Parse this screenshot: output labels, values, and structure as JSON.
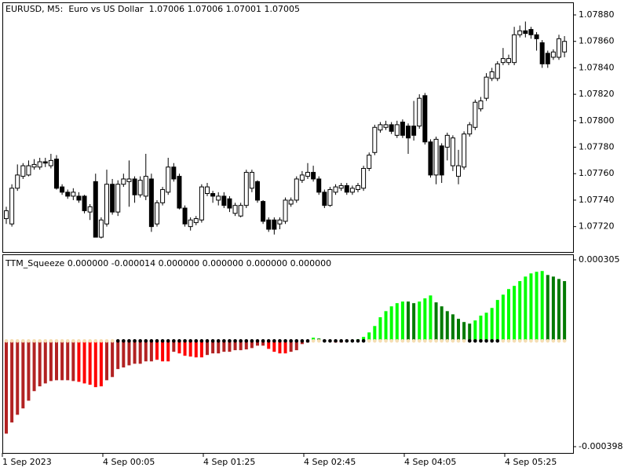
{
  "chart_data": [
    {
      "type": "candlestick",
      "title": "EURUSD, M5:  Euro vs US Dollar  1.07006 1.07006 1.07001 1.07005",
      "up_color": "#ffffff",
      "down_color": "#000000",
      "open": [
        1.07726,
        1.07722,
        1.07749,
        1.07758,
        1.07759,
        1.07765,
        1.07765,
        1.07769,
        1.07766,
        1.07771,
        1.0775,
        1.07746,
        1.07743,
        1.07743,
        1.07743,
        1.07731,
        1.07754,
        1.07712,
        1.07722,
        1.07752,
        1.07731,
        1.07752,
        1.07754,
        1.07756,
        1.07744,
        1.07743,
        1.07756,
        1.07722,
        1.07738,
        1.07746,
        1.07765,
        1.07758,
        1.07734,
        1.0772,
        1.07723,
        1.07725,
        1.07745,
        1.07745,
        1.0774,
        1.07743,
        1.07741,
        1.0773,
        1.07728,
        1.07736,
        1.07749,
        1.07754,
        1.07739,
        1.07725,
        1.07725,
        1.07722,
        1.07724,
        1.07737,
        1.0774,
        1.07755,
        1.07758,
        1.07761,
        1.07756,
        1.07746,
        1.07736,
        1.07746,
        1.07749,
        1.07751,
        1.07746,
        1.07748,
        1.07749,
        1.07764,
        1.07776,
        1.07793,
        1.07795,
        1.07797,
        1.07789,
        1.07799,
        1.07796,
        1.07796,
        1.07796,
        1.07819,
        1.07784,
        1.07759,
        1.07781,
        1.0778,
        1.07766,
        1.07758,
        1.07765,
        1.0779,
        1.07795,
        1.07809,
        1.07817,
        1.07832,
        1.07832,
        1.07844,
        1.07844,
        1.07844,
        1.07865,
        1.07868,
        1.07869,
        1.07865,
        1.07859,
        1.07851,
        1.07848,
        1.07848,
        1.07852
      ],
      "high": [
        1.07735,
        1.07752,
        1.07767,
        1.07768,
        1.0777,
        1.07771,
        1.07772,
        1.07772,
        1.07775,
        1.07774,
        1.07752,
        1.07748,
        1.07749,
        1.07746,
        1.07744,
        1.07737,
        1.0776,
        1.07727,
        1.07763,
        1.07756,
        1.07755,
        1.0776,
        1.0777,
        1.07758,
        1.07758,
        1.07775,
        1.0776,
        1.0774,
        1.0775,
        1.07772,
        1.07768,
        1.0776,
        1.07736,
        1.07727,
        1.07728,
        1.07752,
        1.07753,
        1.07747,
        1.07746,
        1.07746,
        1.07743,
        1.07738,
        1.07738,
        1.07763,
        1.07763,
        1.07755,
        1.0774,
        1.07727,
        1.07727,
        1.07727,
        1.07742,
        1.07742,
        1.07758,
        1.07762,
        1.07768,
        1.07766,
        1.07758,
        1.07748,
        1.0775,
        1.07752,
        1.07753,
        1.07753,
        1.07751,
        1.07753,
        1.07766,
        1.07776,
        1.07797,
        1.07799,
        1.078,
        1.07799,
        1.078,
        1.07801,
        1.07798,
        1.07815,
        1.0782,
        1.07821,
        1.07786,
        1.07788,
        1.07783,
        1.07791,
        1.07789,
        1.07778,
        1.07792,
        1.07799,
        1.07816,
        1.07818,
        1.07836,
        1.0784,
        1.07845,
        1.07855,
        1.0785,
        1.07871,
        1.07872,
        1.07875,
        1.07871,
        1.07867,
        1.07861,
        1.07853,
        1.07854,
        1.07865,
        1.07864
      ],
      "low": [
        1.07722,
        1.0772,
        1.07747,
        1.07756,
        1.07758,
        1.07763,
        1.07763,
        1.07765,
        1.07764,
        1.07748,
        1.07744,
        1.07741,
        1.0774,
        1.07738,
        1.0773,
        1.07725,
        1.07712,
        1.07711,
        1.0772,
        1.07729,
        1.07728,
        1.0775,
        1.07735,
        1.07738,
        1.07742,
        1.0774,
        1.07716,
        1.0772,
        1.07736,
        1.07744,
        1.07754,
        1.07733,
        1.0772,
        1.07717,
        1.07721,
        1.07723,
        1.07743,
        1.07738,
        1.07736,
        1.07734,
        1.07731,
        1.07728,
        1.07727,
        1.07734,
        1.07746,
        1.07738,
        1.07722,
        1.07716,
        1.07714,
        1.07718,
        1.07722,
        1.07735,
        1.07738,
        1.07753,
        1.07756,
        1.07754,
        1.07744,
        1.07734,
        1.07735,
        1.07744,
        1.07747,
        1.07744,
        1.07744,
        1.07746,
        1.07747,
        1.07762,
        1.07774,
        1.07791,
        1.07793,
        1.0779,
        1.07787,
        1.07787,
        1.07775,
        1.07785,
        1.07794,
        1.07782,
        1.07757,
        1.07752,
        1.07753,
        1.0777,
        1.07762,
        1.07752,
        1.07763,
        1.07788,
        1.07793,
        1.07807,
        1.07815,
        1.0783,
        1.0783,
        1.07842,
        1.07842,
        1.07842,
        1.07863,
        1.07863,
        1.07862,
        1.07853,
        1.0784,
        1.0784,
        1.07846,
        1.07846,
        1.07848
      ],
      "close": [
        1.07732,
        1.07749,
        1.07759,
        1.07766,
        1.07766,
        1.07767,
        1.07769,
        1.07768,
        1.0777,
        1.07749,
        1.07746,
        1.07743,
        1.07746,
        1.0774,
        1.07732,
        1.07735,
        1.07712,
        1.07725,
        1.07752,
        1.07731,
        1.07752,
        1.07756,
        1.07756,
        1.07744,
        1.07755,
        1.07758,
        1.0772,
        1.07738,
        1.07748,
        1.07765,
        1.07756,
        1.07734,
        1.07722,
        1.07725,
        1.07726,
        1.0775,
        1.0775,
        1.07743,
        1.07743,
        1.07736,
        1.07734,
        1.07736,
        1.07736,
        1.07761,
        1.07761,
        1.0774,
        1.07724,
        1.07718,
        1.07718,
        1.07725,
        1.0774,
        1.0774,
        1.07756,
        1.07759,
        1.07761,
        1.07756,
        1.07746,
        1.07736,
        1.07748,
        1.0775,
        1.07751,
        1.07746,
        1.07749,
        1.07751,
        1.07764,
        1.07774,
        1.07795,
        1.07797,
        1.07797,
        1.07792,
        1.07797,
        1.07789,
        1.07787,
        1.07789,
        1.07817,
        1.07784,
        1.07759,
        1.07786,
        1.07759,
        1.07789,
        1.07787,
        1.07766,
        1.0779,
        1.07797,
        1.07814,
        1.07815,
        1.07833,
        1.07837,
        1.07843,
        1.07847,
        1.07847,
        1.07865,
        1.07868,
        1.07866,
        1.07865,
        1.07862,
        1.07843,
        1.07843,
        1.07852,
        1.07862,
        1.0786
      ],
      "ylim": [
        1.077008,
        1.078895
      ],
      "yticks": [
        {
          "value": 1.0788,
          "label": "1.07880"
        },
        {
          "value": 1.0786,
          "label": "1.07860"
        },
        {
          "value": 1.0784,
          "label": "1.07840"
        },
        {
          "value": 1.0782,
          "label": "1.07820"
        },
        {
          "value": 1.078,
          "label": "1.07800"
        },
        {
          "value": 1.0778,
          "label": "1.07780"
        },
        {
          "value": 1.0776,
          "label": "1.07760"
        },
        {
          "value": 1.0774,
          "label": "1.07740"
        },
        {
          "value": 1.0772,
          "label": "1.07720"
        }
      ]
    },
    {
      "type": "bar",
      "title": "TTM_Squeeze 0.000000 -0.000014 0.000000 0.000000 0.000000 0.000000",
      "categories": [
        "1 Sep 2023",
        null,
        null,
        null,
        null,
        null,
        null,
        null,
        null,
        null,
        null,
        null,
        null,
        null,
        null,
        null,
        null,
        null,
        "4 Sep 00:05",
        null,
        null,
        null,
        null,
        null,
        null,
        null,
        null,
        null,
        null,
        null,
        null,
        null,
        null,
        null,
        null,
        null,
        "4 Sep 01:25",
        null,
        null,
        null,
        null,
        null,
        null,
        null,
        null,
        null,
        null,
        null,
        null,
        null,
        null,
        null,
        null,
        null,
        "4 Sep 02:45",
        null,
        null,
        null,
        null,
        null,
        null,
        null,
        null,
        null,
        null,
        null,
        null,
        null,
        null,
        null,
        null,
        null,
        "4 Sep 04:05",
        null,
        null,
        null,
        null,
        null,
        null,
        null,
        null,
        null,
        null,
        null,
        null,
        null,
        null,
        null,
        null,
        null,
        "4 Sep 05:25",
        null,
        null,
        null,
        null,
        null,
        null,
        null,
        null,
        null,
        null
      ],
      "values": [
        -0.000349,
        -0.000307,
        -0.000278,
        -0.000254,
        -0.000225,
        -0.000189,
        -0.000171,
        -0.00016,
        -0.000151,
        -0.000148,
        -0.000148,
        -0.000148,
        -0.000151,
        -0.000154,
        -0.00016,
        -0.000165,
        -0.000174,
        -0.000171,
        -0.000148,
        -0.000136,
        -0.000106,
        -0.0001,
        -9.2e-05,
        -8.6e-05,
        -8.6e-05,
        -7.7e-05,
        -7.7e-05,
        -7.1e-05,
        -7.7e-05,
        -7.7e-05,
        -4.1e-05,
        -4.7e-05,
        -5.6e-05,
        -5.9e-05,
        -6.2e-05,
        -6.2e-05,
        -5.3e-05,
        -4.7e-05,
        -4.7e-05,
        -4.1e-05,
        -4.1e-05,
        -3.5e-05,
        -3.5e-05,
        -3.2e-05,
        -2.7e-05,
        -1.8e-05,
        -1.8e-05,
        -3e-05,
        -4.1e-05,
        -4.7e-05,
        -4.7e-05,
        -4.1e-05,
        -3.5e-05,
        -1.2e-05,
        -6e-06,
        1.2e-05,
        9e-06,
        3e-06,
        -3e-06,
        -6e-06,
        -6e-06,
        -3e-06,
        3e-06,
        6e-06,
        1.5e-05,
        3.2e-05,
        5.6e-05,
        8.9e-05,
        0.000112,
        0.00013,
        0.000142,
        0.000148,
        0.000148,
        0.000142,
        0.000148,
        0.00016,
        0.000171,
        0.000145,
        0.00013,
        0.000112,
        0.0001,
        8.3e-05,
        7.1e-05,
        6.5e-05,
        7.7e-05,
        9.5e-05,
        0.000106,
        0.000124,
        0.000154,
        0.000174,
        0.000195,
        0.000207,
        0.000225,
        0.000242,
        0.000254,
        0.00026,
        0.000263,
        0.000248,
        0.000242,
        0.000233,
        0.000225
      ],
      "colors": [
        "#b22222",
        "#b22222",
        "#b22222",
        "#b22222",
        "#b22222",
        "#b22222",
        "#b22222",
        "#b22222",
        "#b22222",
        "#b22222",
        "#b22222",
        "#b22222",
        "#b22222",
        "#ff0000",
        "#ff0000",
        "#ff0000",
        "#ff0000",
        "#ff0000",
        "#b22222",
        "#b22222",
        "#b22222",
        "#b22222",
        "#b22222",
        "#b22222",
        "#b22222",
        "#b22222",
        "#b22222",
        "#ff0000",
        "#ff0000",
        "#ff0000",
        "#b22222",
        "#ff0000",
        "#ff0000",
        "#ff0000",
        "#ff0000",
        "#ff0000",
        "#b22222",
        "#b22222",
        "#b22222",
        "#b22222",
        "#b22222",
        "#b22222",
        "#b22222",
        "#b22222",
        "#b22222",
        "#b22222",
        "#b22222",
        "#ff0000",
        "#ff0000",
        "#ff0000",
        "#ff0000",
        "#b22222",
        "#b22222",
        "#b22222",
        "#b22222",
        "#00ff00",
        "#007a00",
        "#007a00",
        "#b22222",
        "#ff0000",
        "#b22222",
        "#b22222",
        "#00ff00",
        "#00ff00",
        "#00ff00",
        "#00ff00",
        "#00ff00",
        "#00ff00",
        "#00ff00",
        "#00ff00",
        "#00ff00",
        "#00ff00",
        "#007a00",
        "#007a00",
        "#00ff00",
        "#00ff00",
        "#00ff00",
        "#007a00",
        "#007a00",
        "#007a00",
        "#007a00",
        "#007a00",
        "#007a00",
        "#007a00",
        "#00ff00",
        "#00ff00",
        "#00ff00",
        "#00ff00",
        "#00ff00",
        "#00ff00",
        "#00ff00",
        "#00ff00",
        "#00ff00",
        "#00ff00",
        "#00ff00",
        "#00ff00",
        "#00ff00",
        "#007a00",
        "#007a00",
        "#007a00",
        "#007a00"
      ],
      "dot_colors": [
        "#f5deb3",
        "#f5deb3",
        "#f5deb3",
        "#f5deb3",
        "#f5deb3",
        "#f5deb3",
        "#f5deb3",
        "#f5deb3",
        "#f5deb3",
        "#f5deb3",
        "#f5deb3",
        "#f5deb3",
        "#f5deb3",
        "#f5deb3",
        "#f5deb3",
        "#f5deb3",
        "#f5deb3",
        "#f5deb3",
        "#f5deb3",
        "#f5deb3",
        "#000000",
        "#000000",
        "#000000",
        "#000000",
        "#000000",
        "#000000",
        "#000000",
        "#000000",
        "#000000",
        "#000000",
        "#000000",
        "#000000",
        "#000000",
        "#000000",
        "#000000",
        "#000000",
        "#000000",
        "#000000",
        "#000000",
        "#000000",
        "#000000",
        "#000000",
        "#000000",
        "#000000",
        "#000000",
        "#000000",
        "#000000",
        "#000000",
        "#000000",
        "#000000",
        "#000000",
        "#000000",
        "#000000",
        "#000000",
        "#000000",
        "#f5deb3",
        "#f5deb3",
        "#000000",
        "#000000",
        "#000000",
        "#000000",
        "#000000",
        "#000000",
        "#000000",
        "#000000",
        "#f5deb3",
        "#f5deb3",
        "#f5deb3",
        "#f5deb3",
        "#f5deb3",
        "#f5deb3",
        "#f5deb3",
        "#f5deb3",
        "#f5deb3",
        "#f5deb3",
        "#f5deb3",
        "#f5deb3",
        "#f5deb3",
        "#f5deb3",
        "#f5deb3",
        "#f5deb3",
        "#f5deb3",
        "#f5deb3",
        "#000000",
        "#000000",
        "#000000",
        "#000000",
        "#000000",
        "#000000",
        "#f5deb3",
        "#f5deb3",
        "#f5deb3",
        "#f5deb3",
        "#f5deb3",
        "#f5deb3",
        "#f5deb3",
        "#f5deb3",
        "#f5deb3",
        "#f5deb3",
        "#f5deb3",
        "#f5deb3"
      ],
      "ylim": [
        -0.000398,
        0.000305
      ],
      "yticks": [
        0.000305,
        -0.000398
      ]
    }
  ]
}
